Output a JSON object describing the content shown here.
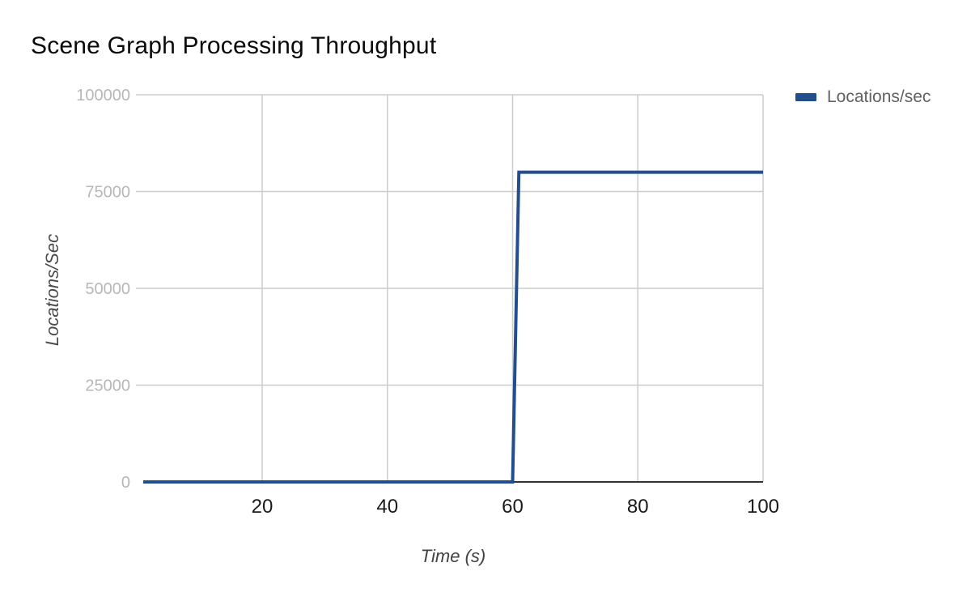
{
  "title": "Scene Graph Processing Throughput",
  "legend": {
    "items": [
      {
        "label": "Locations/sec",
        "color": "#234e8e"
      }
    ]
  },
  "x_axis": {
    "title": "Time (s)"
  },
  "y_axis": {
    "title": "Locations/Sec"
  },
  "colors": {
    "gridline": "#cccccc",
    "baseline": "#333333",
    "y_tick_label": "#b7b7b7",
    "x_tick_label": "#1a1a1a",
    "series": "#234e8e"
  },
  "chart_data": {
    "type": "line",
    "title": "Scene Graph Processing Throughput",
    "xlabel": "Time (s)",
    "ylabel": "Locations/Sec",
    "xlim": [
      1,
      100
    ],
    "ylim": [
      0,
      100000
    ],
    "x_ticks": [
      20,
      40,
      60,
      80,
      100
    ],
    "y_ticks": [
      0,
      25000,
      50000,
      75000,
      100000
    ],
    "grid": true,
    "legend_position": "top-right",
    "series": [
      {
        "name": "Locations/sec",
        "color": "#234e8e",
        "points": [
          [
            1,
            0
          ],
          [
            60,
            0
          ],
          [
            61,
            80000
          ],
          [
            100,
            80000
          ]
        ]
      }
    ]
  }
}
